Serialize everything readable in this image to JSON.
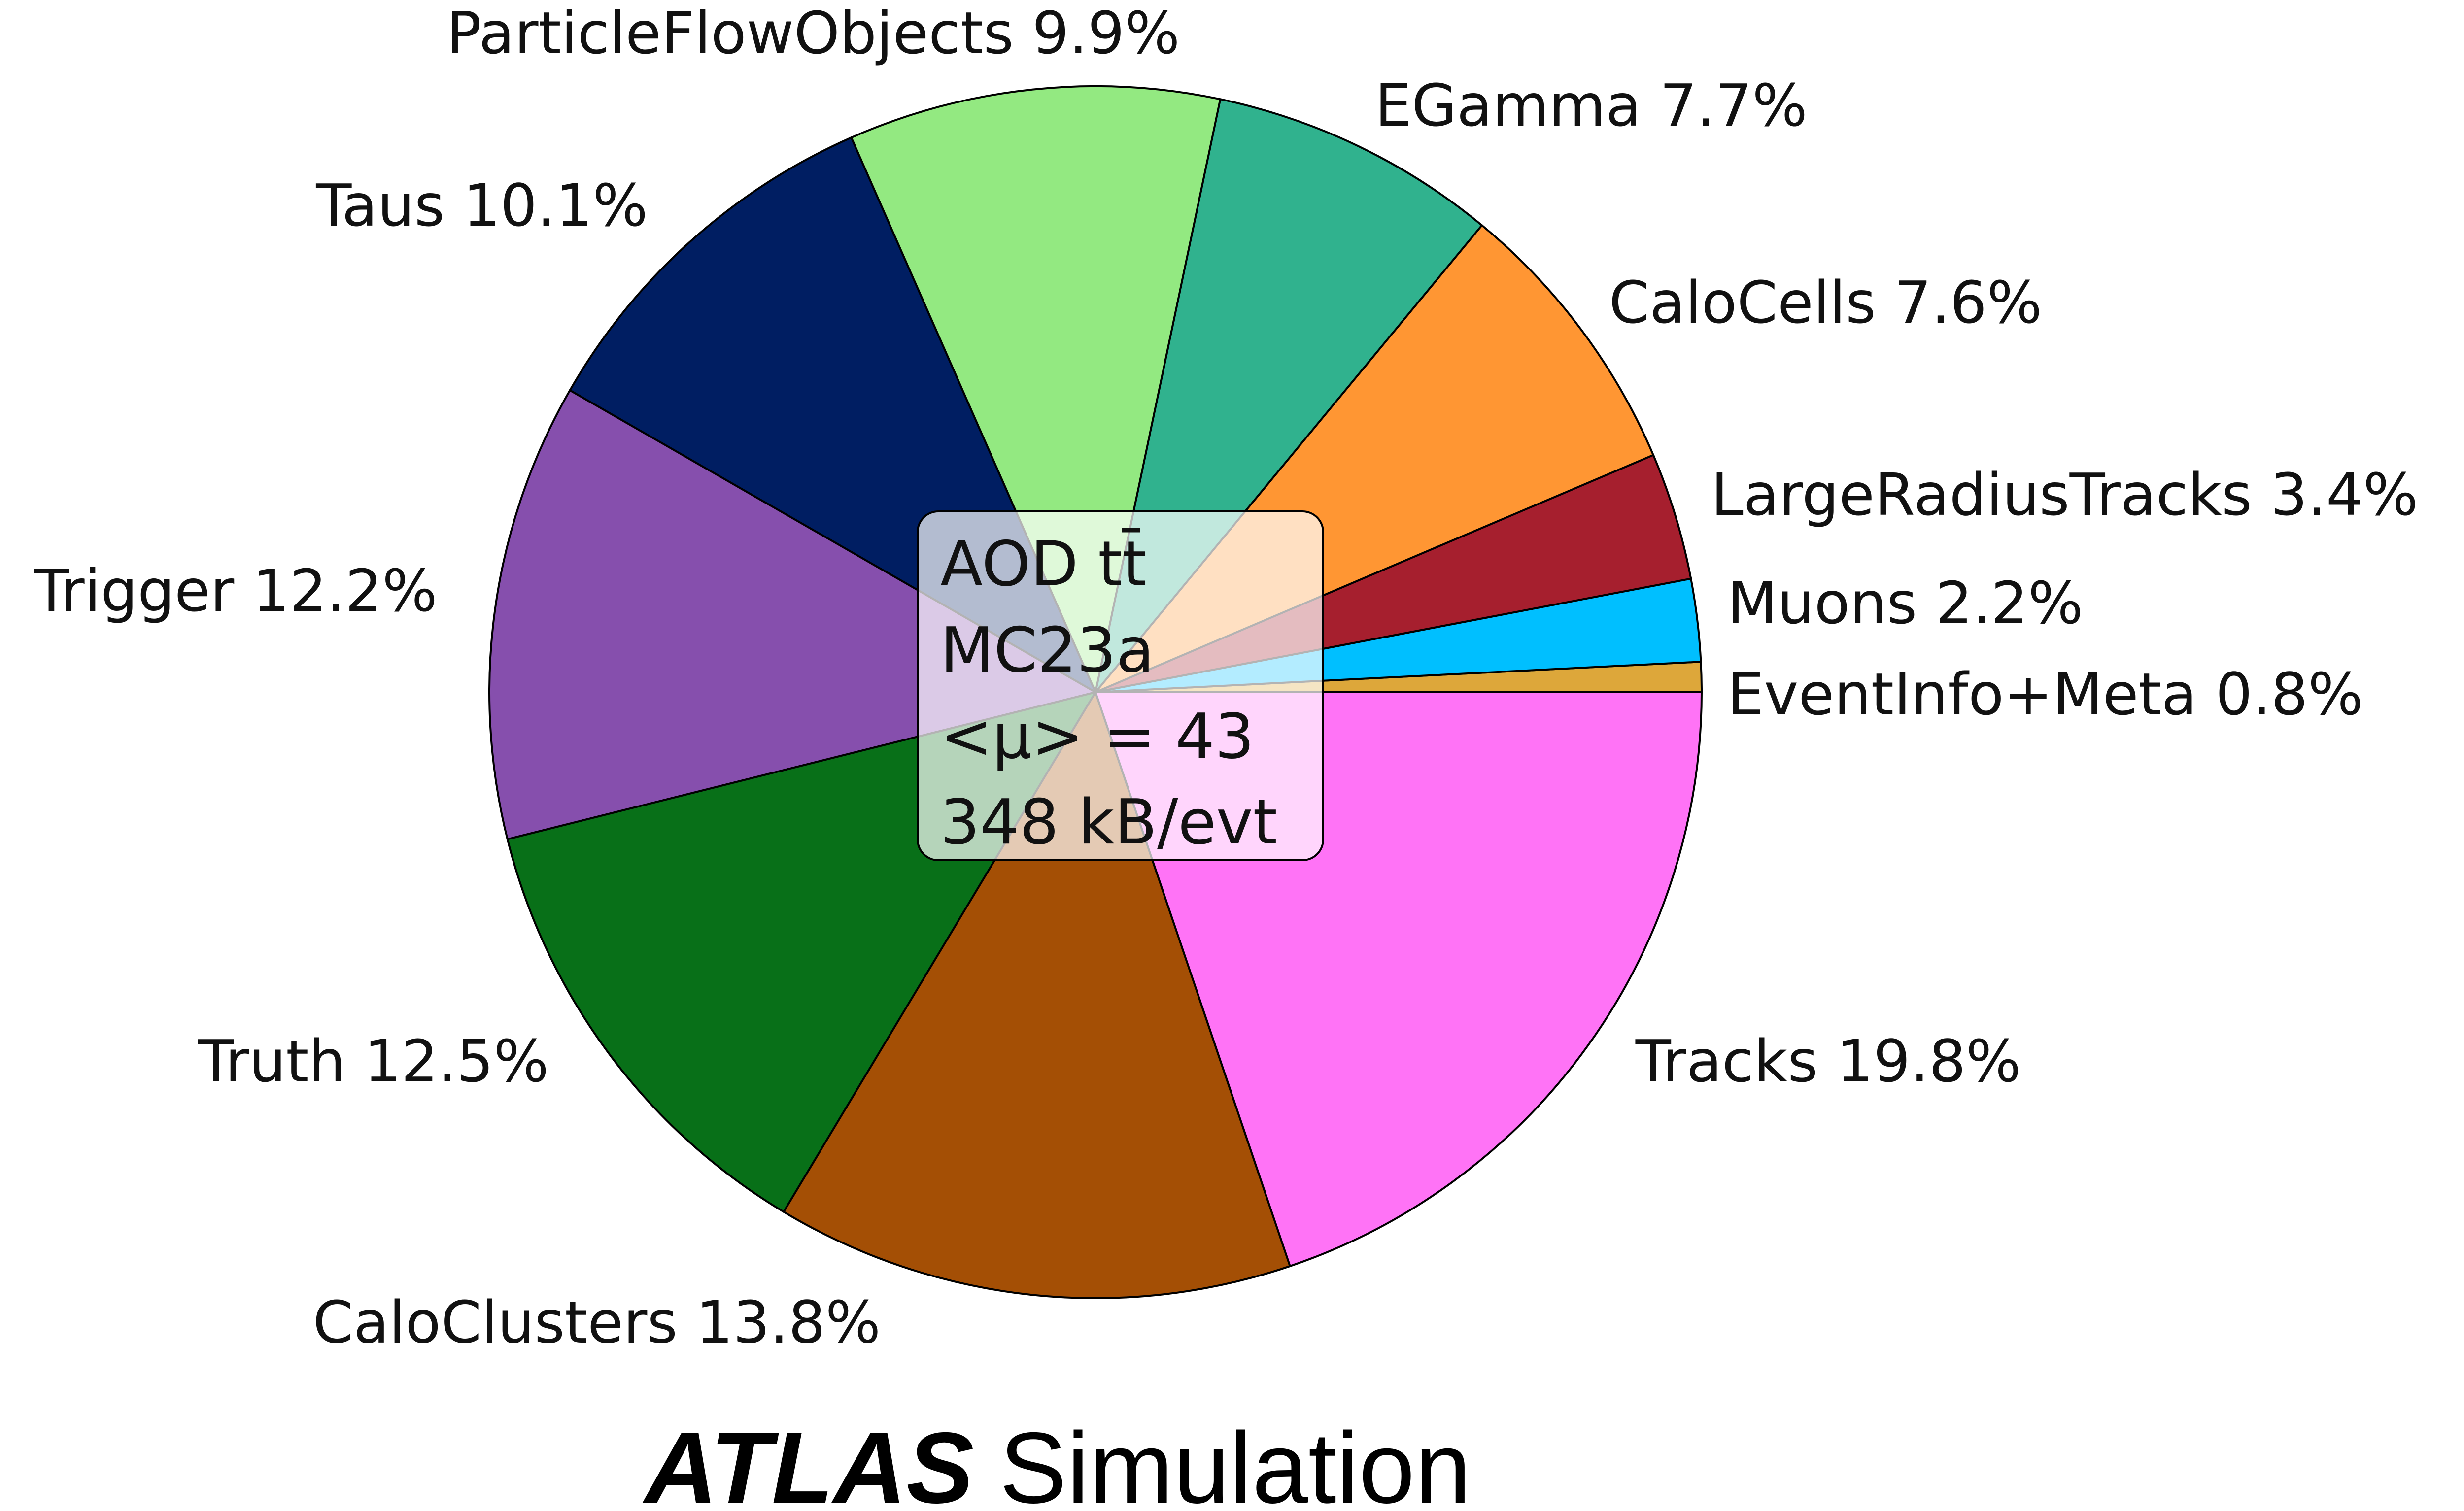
{
  "chart_data": {
    "type": "pie",
    "start_angle_deg": 0,
    "direction": "counterclockwise",
    "slices": [
      {
        "name": "EventInfo+Meta",
        "value": 0.8,
        "label": "EventInfo+Meta 0.8%",
        "color": "#DDA73A"
      },
      {
        "name": "Muons",
        "value": 2.2,
        "label": "Muons 2.2%",
        "color": "#00BFFF"
      },
      {
        "name": "LargeRadiusTracks",
        "value": 3.4,
        "label": "LargeRadiusTracks 3.4%",
        "color": "#A61F2E"
      },
      {
        "name": "CaloCells",
        "value": 7.6,
        "label": "CaloCells 7.6%",
        "color": "#FF9633"
      },
      {
        "name": "EGamma",
        "value": 7.7,
        "label": "EGamma 7.7%",
        "color": "#30B28E"
      },
      {
        "name": "ParticleFlowObjects",
        "value": 9.9,
        "label": "ParticleFlowObjects 9.9%",
        "color": "#93E981"
      },
      {
        "name": "Taus",
        "value": 10.1,
        "label": "Taus 10.1%",
        "color": "#001E62"
      },
      {
        "name": "Trigger",
        "value": 12.2,
        "label": "Trigger 12.2%",
        "color": "#864FAD"
      },
      {
        "name": "Truth",
        "value": 12.5,
        "label": "Truth 12.5%",
        "color": "#087018"
      },
      {
        "name": "CaloClusters",
        "value": 13.8,
        "label": "CaloClusters 13.8%",
        "color": "#A44F05"
      },
      {
        "name": "Tracks",
        "value": 19.8,
        "label": "Tracks 19.8%",
        "color": "#FF73F6"
      }
    ],
    "annotation_lines": [
      "AOD tt̄",
      "MC23a",
      "<μ> = 43",
      "348 kB/evt"
    ],
    "footer": {
      "bold": "ATLAS",
      "normal": "Simulation"
    }
  }
}
